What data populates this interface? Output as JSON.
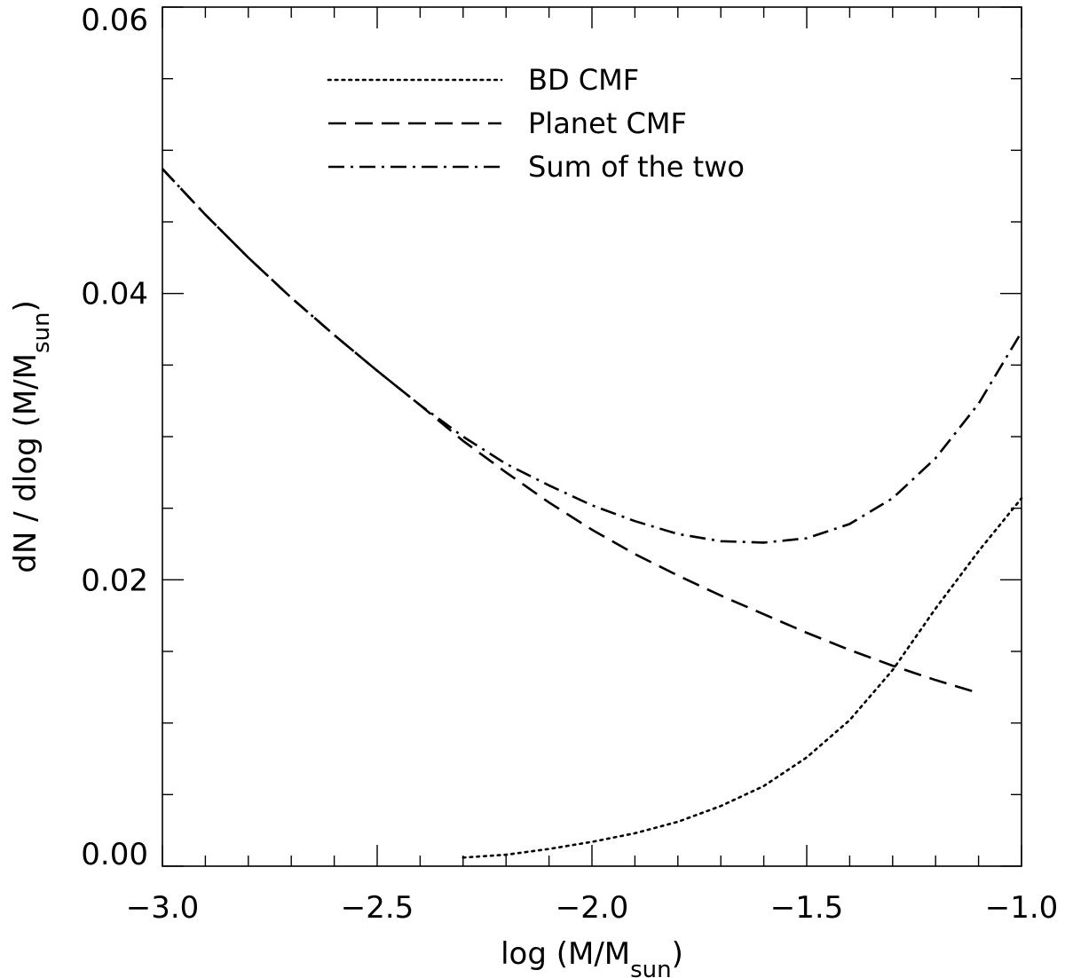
{
  "chart_data": {
    "type": "line",
    "title": "",
    "xlabel": {
      "main": "log (M/M",
      "sub": "sun",
      "end": ")"
    },
    "ylabel": {
      "main": "dN / dlog (M/M",
      "sub": "sun",
      "end": ")"
    },
    "xlim": [
      -3.0,
      -1.0
    ],
    "ylim": [
      0.0,
      0.06
    ],
    "x_ticks": [
      -3.0,
      -2.5,
      -2.0,
      -1.5,
      -1.0
    ],
    "x_tick_labels": [
      "−3.0",
      "−2.5",
      "−2.0",
      "−1.5",
      "−1.0"
    ],
    "x_minor_step": 0.1,
    "y_ticks": [
      0.0,
      0.02,
      0.04,
      0.06
    ],
    "y_tick_labels": [
      "0.00",
      "0.02",
      "0.04",
      "0.06"
    ],
    "y_minor_step": 0.005,
    "grid": false,
    "legend_position": "top-center",
    "series": [
      {
        "name": "BD CMF",
        "dash": "dotted",
        "x": [
          -2.3,
          -2.2,
          -2.1,
          -2.0,
          -1.9,
          -1.8,
          -1.7,
          -1.6,
          -1.5,
          -1.4,
          -1.3,
          -1.2,
          -1.1,
          -1.0
        ],
        "y": [
          0.0006,
          0.0008,
          0.0012,
          0.0017,
          0.0023,
          0.0031,
          0.0042,
          0.0056,
          0.0076,
          0.0102,
          0.0137,
          0.018,
          0.022,
          0.0257
        ]
      },
      {
        "name": "Planet CMF",
        "dash": "dashed",
        "x": [
          -3.0,
          -2.9,
          -2.8,
          -2.7,
          -2.6,
          -2.5,
          -2.4,
          -2.3,
          -2.2,
          -2.1,
          -2.0,
          -1.9,
          -1.8,
          -1.7,
          -1.6,
          -1.5,
          -1.4,
          -1.3,
          -1.2,
          -1.1
        ],
        "y": [
          0.0487,
          0.0455,
          0.0425,
          0.0397,
          0.0371,
          0.0346,
          0.0322,
          0.0297,
          0.0275,
          0.0254,
          0.0235,
          0.0218,
          0.0203,
          0.0189,
          0.0176,
          0.0163,
          0.0151,
          0.014,
          0.013,
          0.0121
        ]
      },
      {
        "name": "Sum of the two",
        "dash": "dashdot",
        "x": [
          -3.0,
          -2.9,
          -2.8,
          -2.7,
          -2.6,
          -2.5,
          -2.4,
          -2.3,
          -2.2,
          -2.1,
          -2.0,
          -1.9,
          -1.8,
          -1.7,
          -1.6,
          -1.5,
          -1.4,
          -1.3,
          -1.2,
          -1.1,
          -1.0
        ],
        "y": [
          0.0487,
          0.0455,
          0.0425,
          0.0397,
          0.0371,
          0.0346,
          0.0322,
          0.03,
          0.0281,
          0.0266,
          0.0252,
          0.0241,
          0.0232,
          0.0227,
          0.0226,
          0.0229,
          0.0239,
          0.0257,
          0.0285,
          0.0323,
          0.0373
        ]
      }
    ]
  }
}
